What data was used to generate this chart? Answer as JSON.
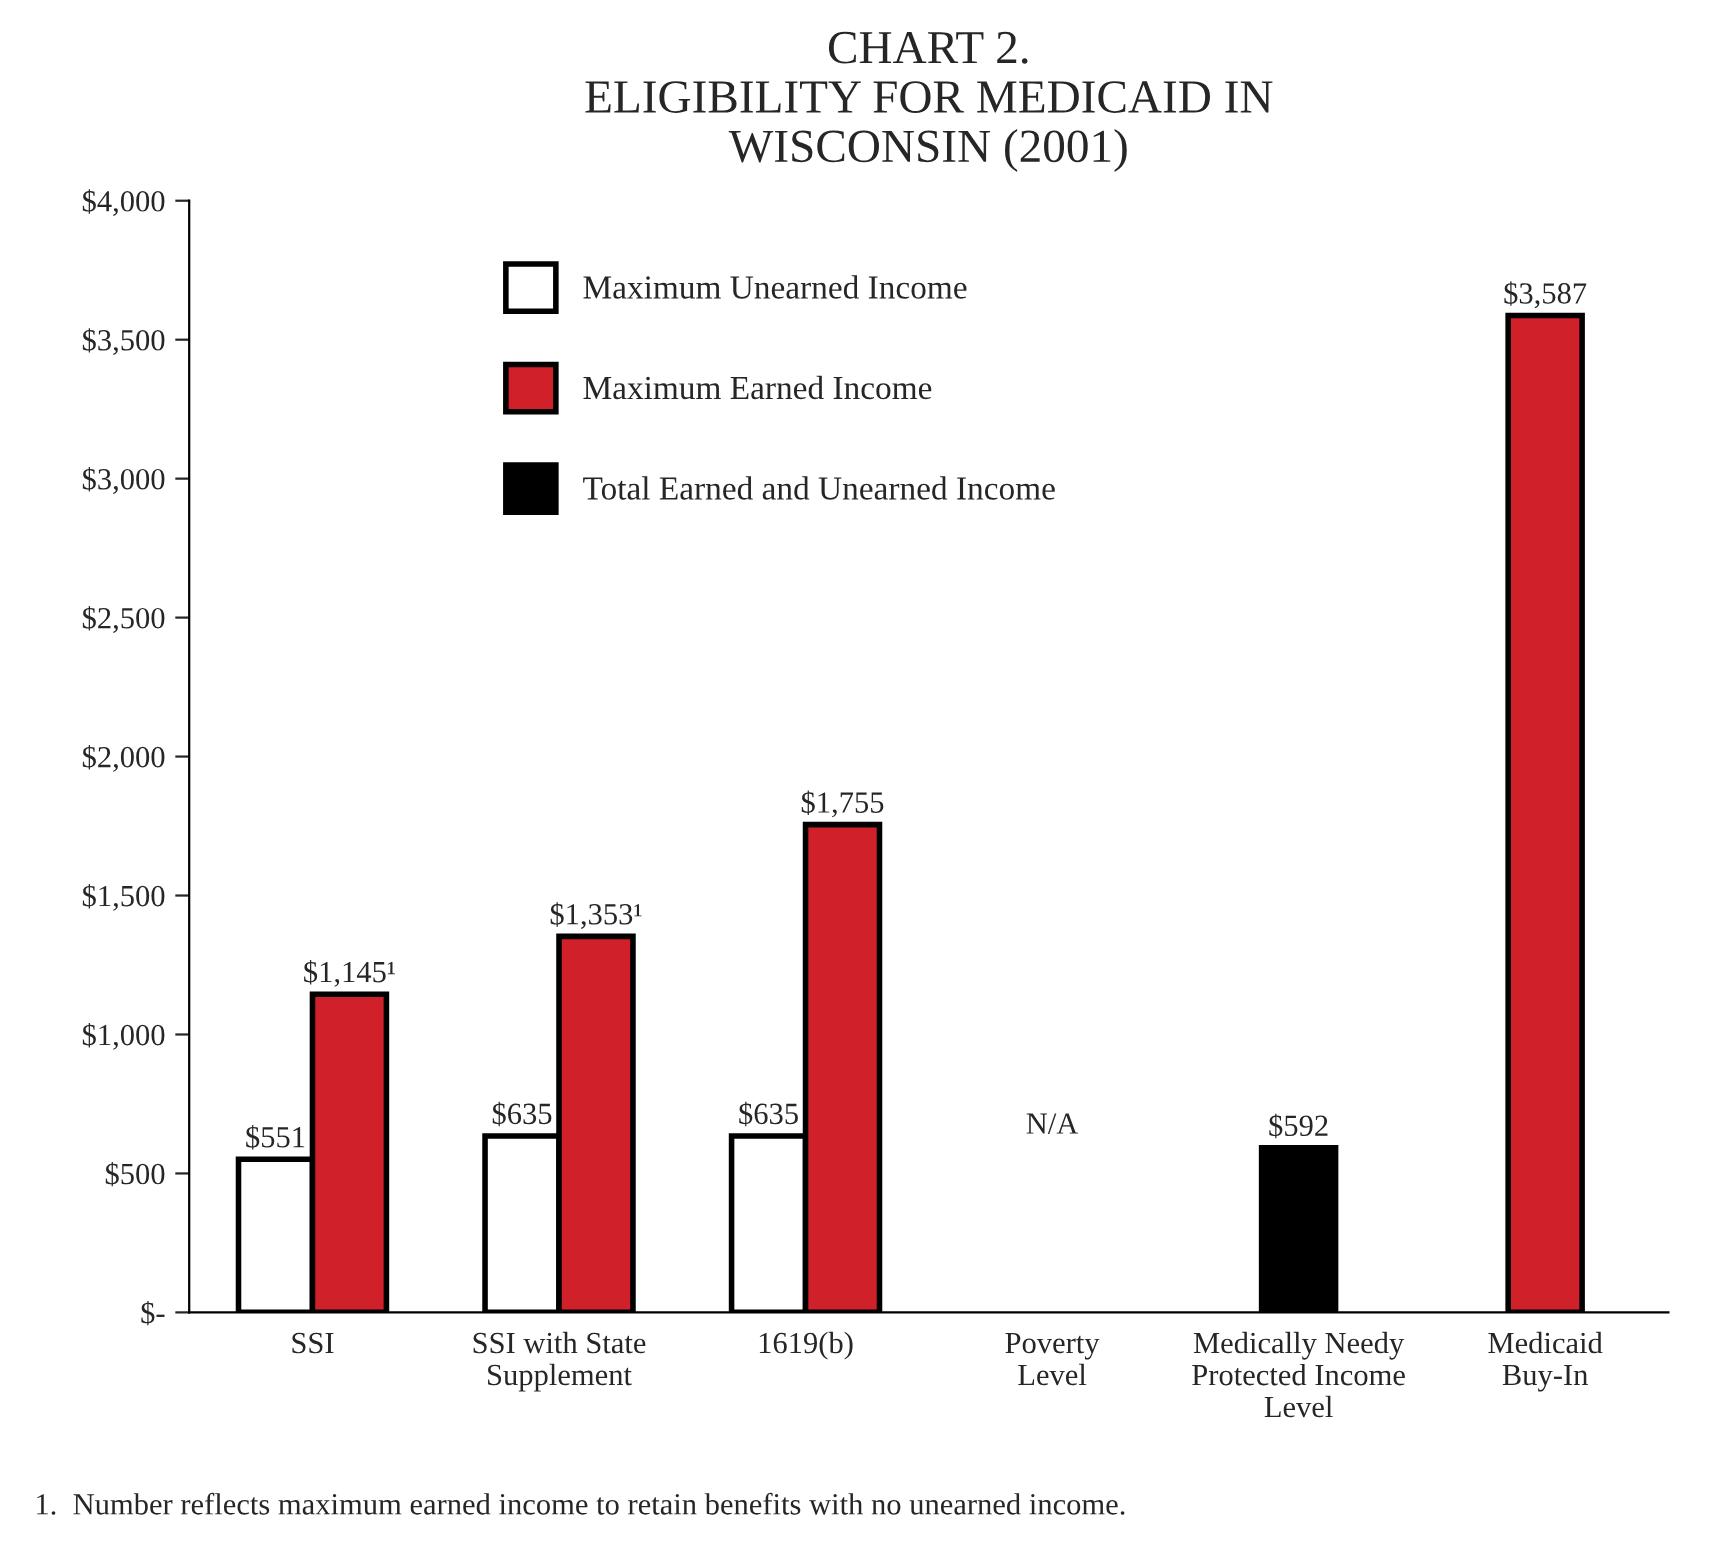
{
  "chart_data": {
    "type": "bar",
    "title": "CHART 2.\nELIGIBILITY FOR MEDICAID IN\nWISCONSIN (2001)",
    "categories": [
      "SSI",
      "SSI with State\nSupplement",
      "1619(b)",
      "Poverty\nLevel",
      "Medically Needy\nProtected Income\nLevel",
      "Medicaid\nBuy-In"
    ],
    "series": [
      {
        "name": "Maximum Unearned Income",
        "color": "#ffffff",
        "values": [
          551,
          635,
          635,
          null,
          null,
          null
        ],
        "value_labels": [
          "$551",
          "$635",
          "$635",
          null,
          null,
          null
        ]
      },
      {
        "name": "Maximum Earned Income",
        "color": "#d0202a",
        "values": [
          1145,
          1353,
          1755,
          null,
          null,
          3587
        ],
        "value_labels": [
          "$1,145¹",
          "$1,353¹",
          "$1,755",
          null,
          null,
          "$3,587"
        ]
      },
      {
        "name": "Total Earned and Unearned Income",
        "color": "#000000",
        "values": [
          null,
          null,
          null,
          null,
          592,
          null
        ],
        "value_labels": [
          null,
          null,
          null,
          null,
          "$592",
          null
        ]
      }
    ],
    "ylim": [
      0,
      4000
    ],
    "yticks": [
      {
        "value": 0,
        "label": "$-"
      },
      {
        "value": 500,
        "label": "$500"
      },
      {
        "value": 1000,
        "label": "$1,000"
      },
      {
        "value": 1500,
        "label": "$1,500"
      },
      {
        "value": 2000,
        "label": "$2,000"
      },
      {
        "value": 2500,
        "label": "$2,500"
      },
      {
        "value": 3000,
        "label": "$3,000"
      },
      {
        "value": 3500,
        "label": "$3,500"
      },
      {
        "value": 4000,
        "label": "$4,000"
      }
    ],
    "grid": false,
    "legend": "top",
    "annotations": [
      "N/A",
      "1.  Number reflects maximum earned income to retain benefits with no unearned income."
    ]
  }
}
